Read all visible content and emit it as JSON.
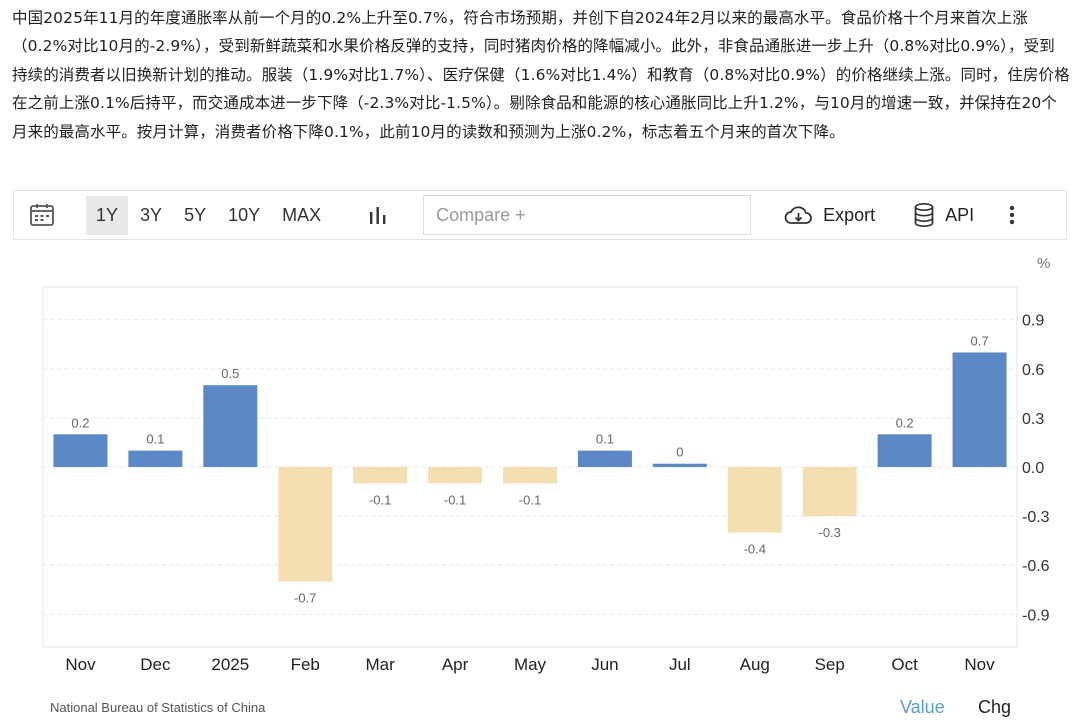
{
  "article": {
    "text": "中国2025年11月的年度通胀率从前一个月的0.2%上升至0.7%，符合市场预期，并创下自2024年2月以来的最高水平。食品价格十个月来首次上涨（0.2%对比10月的-2.9%），受到新鲜蔬菜和水果价格反弹的支持，同时猪肉价格的降幅减小。此外，非食品通胀进一步上升（0.8%对比0.9%），受到持续的消费者以旧换新计划的推动。服装（1.9%对比1.7%）、医疗保健（1.6%对比1.4%）和教育（0.8%对比0.9%）的价格继续上涨。同时，住房价格在之前上涨0.1%后持平，而交通成本进一步下降（-2.3%对比-1.5%）。剔除食品和能源的核心通胀同比上升1.2%，与10月的增速一致，并保持在20个月来的最高水平。按月计算，消费者价格下降0.1%，此前10月的读数和预测为上涨0.2%，标志着五个月来的首次下降。"
  },
  "toolbar": {
    "ranges": [
      "1Y",
      "3Y",
      "5Y",
      "10Y",
      "MAX"
    ],
    "active_range": "1Y",
    "compare_placeholder": "Compare +",
    "export_label": "Export",
    "api_label": "API",
    "icons": {
      "calendar": "calendar-icon",
      "bars": "bar-chart-icon",
      "export": "cloud-download-icon",
      "api": "database-icon",
      "more": "more-vertical-icon"
    }
  },
  "footer": {
    "source": "National Bureau of Statistics of China",
    "value_label": "Value",
    "chg_label": "Chg"
  },
  "chart_data": {
    "type": "bar",
    "title": "",
    "xlabel": "",
    "ylabel": "",
    "unit": "%",
    "categories": [
      "Nov",
      "Dec",
      "2025",
      "Feb",
      "Mar",
      "Apr",
      "May",
      "Jun",
      "Jul",
      "Aug",
      "Sep",
      "Oct",
      "Nov"
    ],
    "values": [
      0.2,
      0.1,
      0.5,
      -0.7,
      -0.1,
      -0.1,
      -0.1,
      0.1,
      0,
      -0.4,
      -0.3,
      0.2,
      0.7
    ],
    "bar_heights": [
      0.2,
      0.1,
      0.5,
      -0.7,
      -0.1,
      -0.1,
      -0.1,
      0.1,
      0.02,
      -0.4,
      -0.3,
      0.2,
      0.7
    ],
    "data_labels": [
      "0.2",
      "0.1",
      "0.5",
      "-0.7",
      "-0.1",
      "-0.1",
      "-0.1",
      "0.1",
      "0",
      "-0.4",
      "-0.3",
      "0.2",
      "0.7"
    ],
    "yticks": [
      0.9,
      0.6,
      0.3,
      0.0,
      -0.3,
      -0.6,
      -0.9
    ],
    "ytick_labels": [
      "0.9",
      "0.6",
      "0.3",
      "0.0",
      "-0.3",
      "-0.6",
      "-0.9"
    ],
    "ylim": [
      -1.1,
      1.1
    ],
    "y_axis_side": "right",
    "grid": true,
    "colors": {
      "positive": "#5b88c6",
      "negative": "#f4dfb3"
    }
  }
}
